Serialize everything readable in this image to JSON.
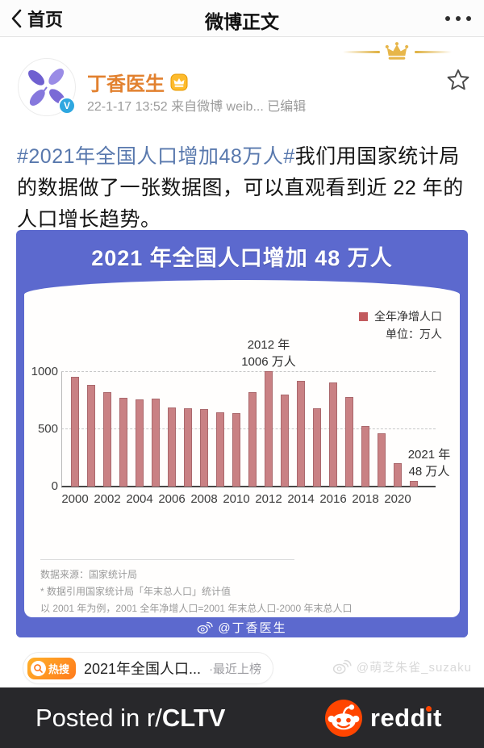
{
  "nav": {
    "back_label": "首页",
    "title": "微博正文"
  },
  "post": {
    "author": "丁香医生",
    "timestamp": "22-1-17 13:52",
    "source": "来自微博 weib...",
    "edited_label": "已编辑",
    "hashtag": "#2021年全国人口增加48万人#",
    "body": "我们用国家统计局的数据做了一张数据图，可以直观看到近 22 年的人口增长趋势。"
  },
  "chart_image": {
    "title": "2021 年全国人口增加 48 万人",
    "legend_label": "全年净增人口",
    "unit_label": "单位：万人",
    "annotation_max_line1": "2012 年",
    "annotation_max_line2": "1006 万人",
    "annotation_last_line1": "2021 年",
    "annotation_last_line2": "48 万人",
    "source_line": "数据来源：国家统计局",
    "note1": "* 数据引用国家统计局「年末总人口」统计值",
    "note2": "以 2001 年为例，2001 全年净增人口=2001 年末总人口-2000 年末总人口",
    "watermark": "@丁香医生",
    "colors": {
      "background": "#5c69ce",
      "bar": "#c98184",
      "bar_border": "#aa686c",
      "legend_swatch": "#c25a5e"
    }
  },
  "chart_data": {
    "type": "bar",
    "title": "2021 年全国人口增加 48 万人",
    "x": [
      2000,
      2001,
      2002,
      2003,
      2004,
      2005,
      2006,
      2007,
      2008,
      2009,
      2010,
      2011,
      2012,
      2013,
      2014,
      2015,
      2016,
      2017,
      2018,
      2019,
      2020,
      2021
    ],
    "values": [
      957,
      884,
      826,
      774,
      761,
      768,
      692,
      681,
      673,
      648,
      641,
      825,
      1006,
      804,
      920,
      680,
      906,
      779,
      530,
      467,
      204,
      48
    ],
    "series_name": "全年净增人口",
    "unit": "万人",
    "xlabel": "",
    "ylabel": "万人",
    "ylim": [
      0,
      1000
    ],
    "yticks": [
      0,
      500,
      1000
    ],
    "xtick_step": 2,
    "grid": "dashed-horizontal",
    "legend_position": "top-right",
    "annotations": [
      {
        "x": 2012,
        "text": "2012 年 1006 万人"
      },
      {
        "x": 2021,
        "text": "2021 年 48 万人"
      }
    ]
  },
  "hot_search": {
    "badge_label": "热搜",
    "title": "2021年全国人口...",
    "status": "·最近上榜"
  },
  "user_watermark": "@萌芝朱雀_suzaku",
  "banner": {
    "prefix": "Posted in r/",
    "subreddit": "CLTV",
    "brand": "reddit"
  }
}
